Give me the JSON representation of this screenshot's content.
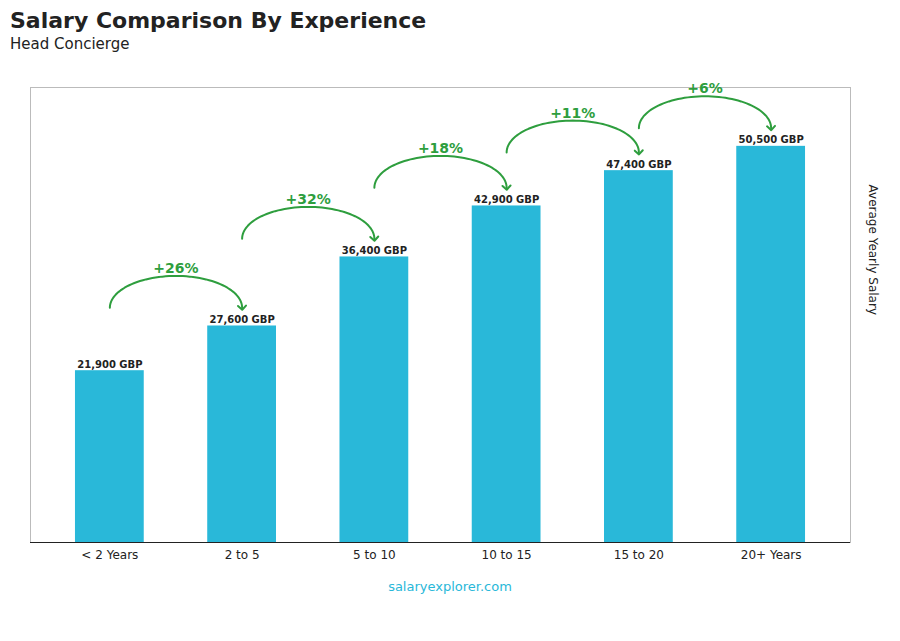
{
  "chart_data": {
    "type": "bar",
    "title": "Salary Comparison By Experience",
    "subtitle": "Head Concierge",
    "categories": [
      "< 2 Years",
      "2 to 5",
      "5 to 10",
      "10 to 15",
      "15 to 20",
      "20+ Years"
    ],
    "values": [
      21900,
      27600,
      36400,
      42900,
      47400,
      50500
    ],
    "value_labels": [
      "21,900 GBP",
      "27,600 GBP",
      "36,400 GBP",
      "42,900 GBP",
      "47,400 GBP",
      "50,500 GBP"
    ],
    "data_labels": true,
    "color": "#29b8d9",
    "ylabel": "Average Yearly Salary",
    "ylim": [
      0,
      58000
    ],
    "tick_labels": "x",
    "grid": false,
    "annotations": [
      "+26%",
      "+32%",
      "+18%",
      "+11%",
      "+6%"
    ],
    "caption": "salaryexplorer.com"
  }
}
